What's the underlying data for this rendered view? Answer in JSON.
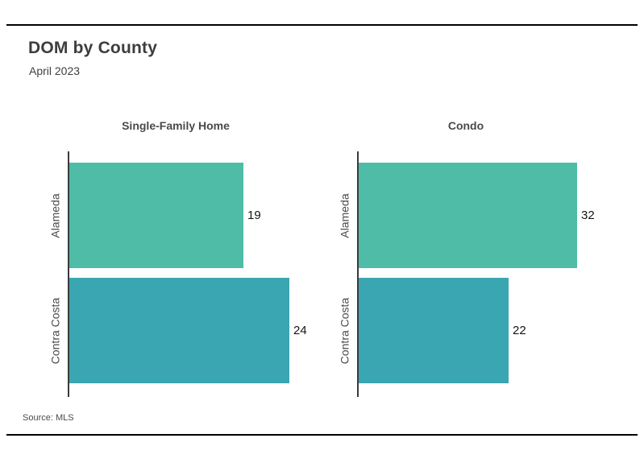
{
  "page": {
    "title": "DOM by County",
    "subtitle": "April 2023",
    "source": "Source: MLS"
  },
  "colors": {
    "bar_alameda": "#4EBCA6",
    "bar_contra_costa": "#3AA6B2",
    "axis": "#3a3a3a",
    "rule": "#000000"
  },
  "chart_data": [
    {
      "type": "bar",
      "orientation": "horizontal",
      "title": "Single-Family Home",
      "categories": [
        "Alameda",
        "Contra Costa"
      ],
      "values": [
        19,
        24
      ],
      "value_labels": [
        "19",
        "24"
      ],
      "xlim": [
        0,
        24
      ],
      "grid": false,
      "legend": false
    },
    {
      "type": "bar",
      "orientation": "horizontal",
      "title": "Condo",
      "categories": [
        "Alameda",
        "Contra Costa"
      ],
      "values": [
        32,
        22
      ],
      "value_labels": [
        "32",
        "22"
      ],
      "xlim": [
        0,
        32
      ],
      "grid": false,
      "legend": false
    }
  ]
}
